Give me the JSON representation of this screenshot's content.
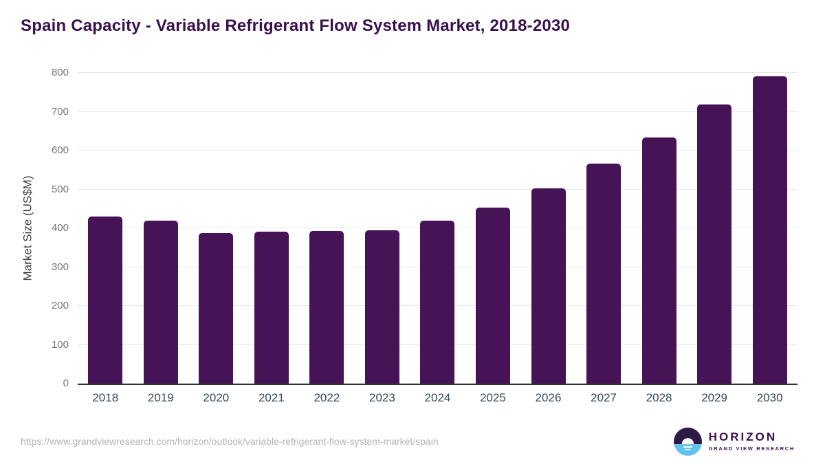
{
  "chart_data": {
    "type": "bar",
    "title": "Spain Capacity - Variable Refrigerant Flow System Market, 2018-2030",
    "categories": [
      "2018",
      "2019",
      "2020",
      "2021",
      "2022",
      "2023",
      "2024",
      "2025",
      "2026",
      "2027",
      "2028",
      "2029",
      "2030"
    ],
    "values": [
      430,
      420,
      387,
      391,
      393,
      395,
      419,
      453,
      503,
      566,
      634,
      719,
      792
    ],
    "xlabel": "",
    "ylabel": "Market Size (US$M)",
    "ylim": [
      0,
      800
    ],
    "yticks": [
      0,
      100,
      200,
      300,
      400,
      500,
      600,
      700,
      800
    ],
    "grid": "horizontal",
    "legend": "none",
    "bar_color": "#461357"
  },
  "colors": {
    "title_text": "#38104E",
    "bar": "#461357",
    "axis_line": "#333333",
    "gridline": "#E8E8E8",
    "y_tick_text": "#757575",
    "x_tick_text": "#37474F",
    "url_text": "#B3B3B3",
    "logo_purple": "#2E1A47",
    "logo_blue": "#5FC3EF"
  },
  "footer": {
    "source_url": "https://www.grandviewresearch.com/horizon/outlook/variable-refrigerant-flow-system-market/spain",
    "logo": {
      "title": "HORIZON",
      "subtitle": "GRAND VIEW RESEARCH"
    }
  }
}
